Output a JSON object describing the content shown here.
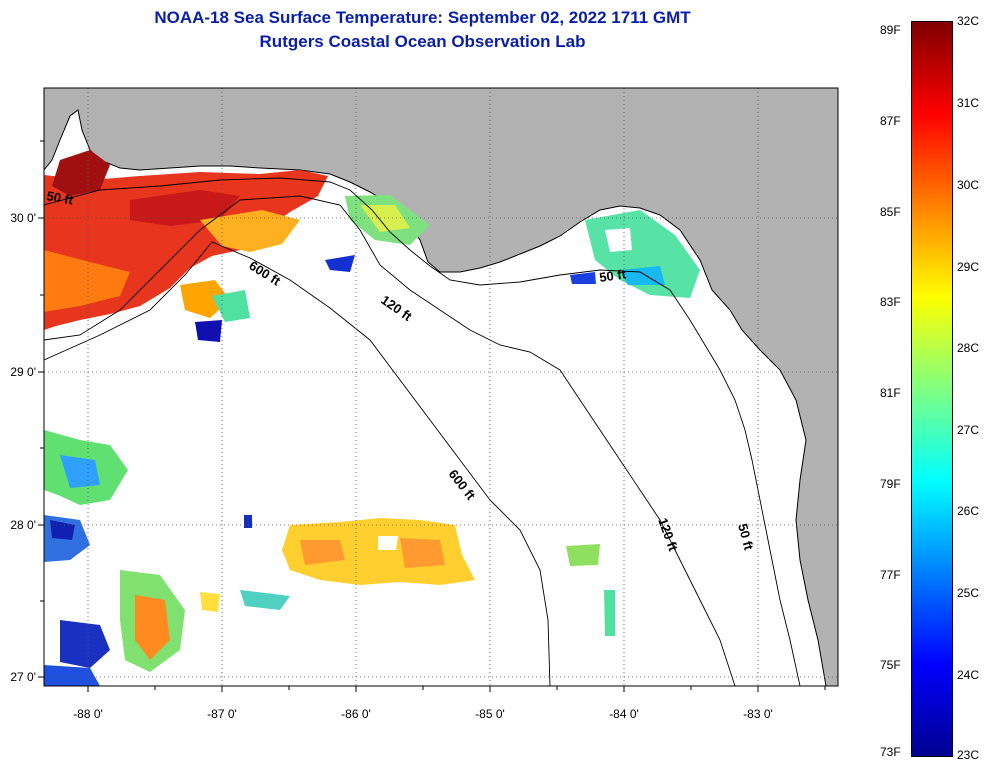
{
  "title_line1": "NOAA-18 Sea Surface Temperature:  September 02, 2022 1711 GMT",
  "title_line2": "Rutgers Coastal Ocean Observation Lab",
  "map": {
    "lon_ticks": [
      "-88 0'",
      "-87 0'",
      "-86 0'",
      "-85 0'",
      "-84 0'",
      "-83 0'"
    ],
    "lat_ticks": [
      "30 0'",
      "29 0'",
      "28 0'",
      "27 0'"
    ],
    "contour_labels": [
      "50 ft",
      "600 ft",
      "120 ft",
      "50 ft",
      "600 ft",
      "120 ft",
      "50 ft"
    ],
    "land_color": "#b2b2b2",
    "nodata_color": "#ffffff"
  },
  "colorbar": {
    "fahrenheit": [
      "89F",
      "87F",
      "85F",
      "83F",
      "81F",
      "79F",
      "77F",
      "75F",
      "73F"
    ],
    "celsius": [
      "32C",
      "31C",
      "30C",
      "29C",
      "28C",
      "27C",
      "26C",
      "25C",
      "24C",
      "23C"
    ]
  }
}
